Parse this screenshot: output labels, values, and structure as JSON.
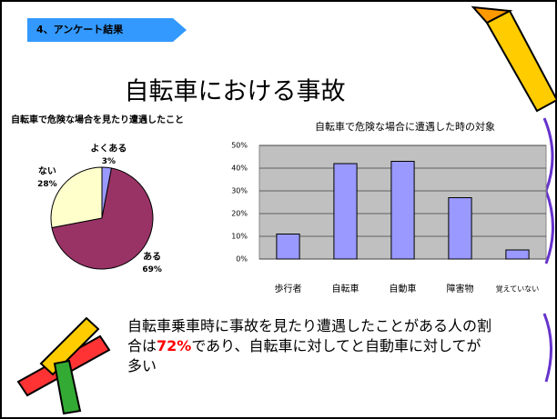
{
  "header": {
    "label": "4、アンケート結果"
  },
  "title": "自転車における事故",
  "chart_data": [
    {
      "type": "pie",
      "title": "自転車で危険な場合を見たり遭遇したこと",
      "categories": [
        "よくある",
        "ある",
        "ない"
      ],
      "values": [
        3,
        69,
        28
      ],
      "value_labels": [
        "3%",
        "69%",
        "28%"
      ],
      "colors": [
        "#9999ff",
        "#993366",
        "#ffffcc"
      ]
    },
    {
      "type": "bar",
      "title": "自転車で危険な場合に遭遇した時の対象",
      "categories": [
        "歩行者",
        "自転車",
        "自動車",
        "障害物",
        "覚えていない"
      ],
      "values": [
        11,
        42,
        43,
        27,
        4
      ],
      "color": "#9999ff",
      "ylim": [
        0,
        50
      ],
      "yticks": [
        {
          "value": 0,
          "label": "0%"
        },
        {
          "value": 10,
          "label": "10%"
        },
        {
          "value": 20,
          "label": "20%"
        },
        {
          "value": 30,
          "label": "30%"
        },
        {
          "value": 40,
          "label": "40%"
        },
        {
          "value": 50,
          "label": "50%"
        }
      ],
      "grid": true
    }
  ],
  "caption": {
    "before": "自転車乗車時に事故を見たり遭遇したことがある人の割合は",
    "highlight": "72%",
    "after": "であり、自転車に対してと自動車に対してが多い"
  }
}
